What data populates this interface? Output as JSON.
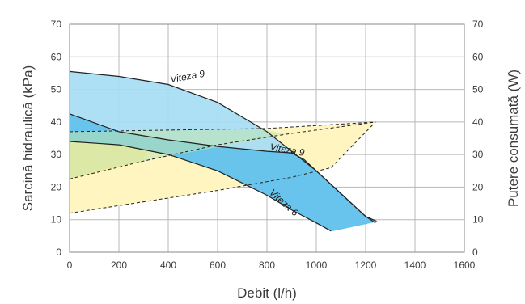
{
  "chart_data": {
    "type": "area",
    "xlabel": "Debit (l/h)",
    "ylabel": "Sarcină hidraulică (kPa)",
    "y2label": "Putere consumată (W)",
    "xlim": [
      0,
      1600
    ],
    "ylim": [
      0,
      70
    ],
    "y2lim": [
      0,
      70
    ],
    "grid": true,
    "x_ticks": [
      "0",
      "200",
      "400",
      "600",
      "800",
      "1000",
      "1200",
      "1400",
      "1600"
    ],
    "y_ticks": [
      "0",
      "10",
      "20",
      "30",
      "40",
      "50",
      "60",
      "70"
    ],
    "y2_ticks": [
      "0",
      "10",
      "20",
      "30",
      "40",
      "50",
      "60",
      "70"
    ],
    "colors": {
      "head_fill": "#a6dcf4",
      "head_fill_low": "#5cc0ea",
      "power_fill": "#fff5c0",
      "power_fill_low": "#ffe87a",
      "overlap_fill": "#c0e4b0",
      "curve": "#222222",
      "grid": "#b8b8b8"
    },
    "series": [
      {
        "role": "head_max",
        "x": [
          0,
          200,
          400,
          600,
          800,
          900,
          1000,
          1100,
          1200,
          1240
        ],
        "y": [
          55.5,
          54,
          51.5,
          46,
          37,
          31,
          25,
          18,
          11,
          9
        ]
      },
      {
        "role": "head_mid",
        "x": [
          0,
          200,
          400,
          600,
          800,
          900,
          950,
          1000,
          1100,
          1200,
          1245
        ],
        "y": [
          42.5,
          37,
          34.5,
          32.5,
          31,
          30.5,
          28.5,
          25,
          18,
          11,
          9.5
        ]
      },
      {
        "role": "head_min",
        "x": [
          0,
          200,
          400,
          600,
          800,
          900,
          1000,
          1060
        ],
        "y": [
          34,
          33,
          30,
          25,
          17.5,
          13,
          9,
          6.5
        ]
      },
      {
        "role": "head_min_end",
        "x": [
          1060,
          1245
        ],
        "y": [
          6.5,
          9.5
        ]
      },
      {
        "role": "power_max",
        "x": [
          0,
          400,
          800,
          1240
        ],
        "y": [
          37,
          37.5,
          38,
          40
        ]
      },
      {
        "role": "power_mid",
        "x": [
          0,
          300,
          600,
          900,
          1240
        ],
        "y": [
          22.5,
          28,
          33,
          36.5,
          40
        ]
      },
      {
        "role": "power_min",
        "x": [
          0,
          300,
          600,
          900,
          1060
        ],
        "y": [
          12,
          15.5,
          19,
          23,
          26
        ]
      },
      {
        "role": "power_right",
        "x": [
          1060,
          1240
        ],
        "y": [
          26,
          40
        ]
      }
    ],
    "annotations": [
      {
        "text": "Viteza 9",
        "x": 480,
        "y": 53,
        "angle": -10
      },
      {
        "text": "Viteza 9",
        "x": 880,
        "y": 30.5,
        "angle": 10
      },
      {
        "text": "Viteza 6",
        "x": 860,
        "y": 14.5,
        "angle": 42
      }
    ]
  }
}
